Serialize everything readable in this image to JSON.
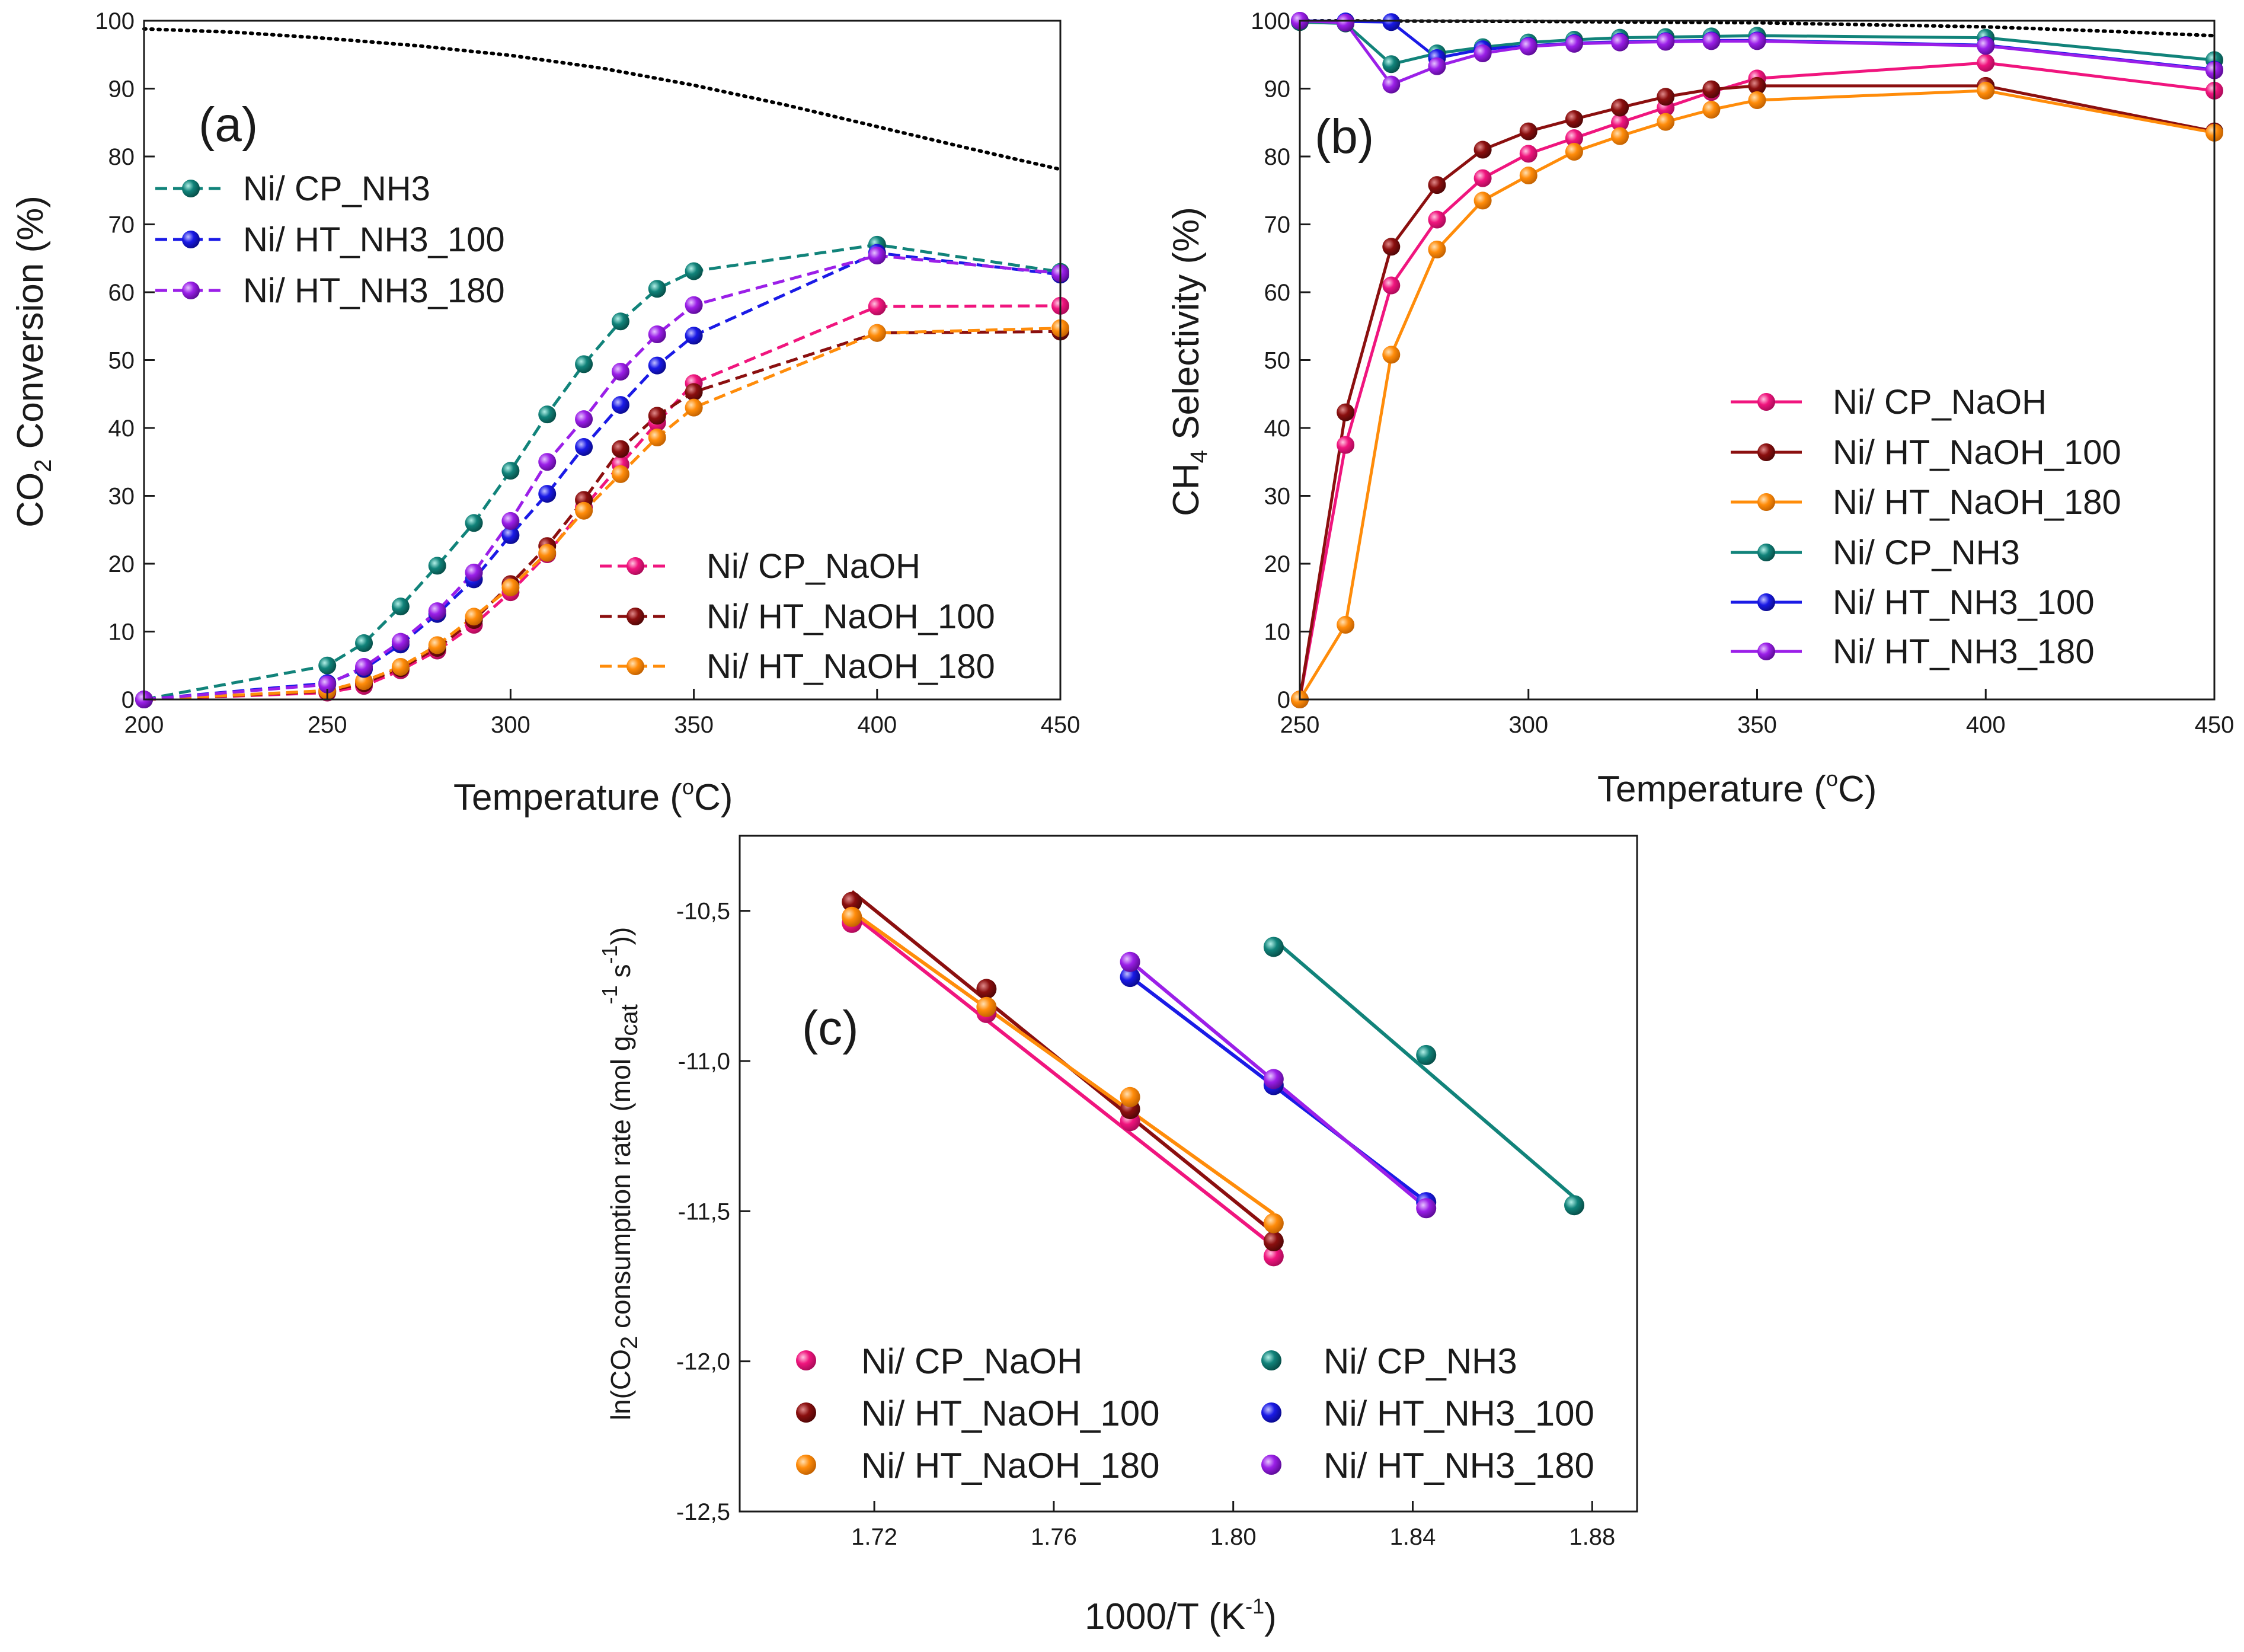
{
  "series_colors": {
    "cp_naoh": "#f0157e",
    "ht_naoh_100": "#8b0f0f",
    "ht_naoh_180": "#ff8c0a",
    "cp_nh3": "#11837a",
    "ht_nh3_100": "#1a1ae6",
    "ht_nh3_180": "#9b1fe8",
    "equilibrium": "#000000"
  },
  "chart_data": [
    {
      "panel": "(a)",
      "type": "line",
      "title": "",
      "xlabel": "Temperature (",
      "xlabel_degree": "o",
      "xlabel_unit": "C)",
      "ylabel_prefix": "CO",
      "ylabel_sub": "2",
      "ylabel_suffix": " Conversion (%)",
      "xlim": [
        200,
        450
      ],
      "ylim": [
        0,
        100
      ],
      "xticks": [
        200,
        250,
        300,
        350,
        400,
        450
      ],
      "yticks": [
        0,
        10,
        20,
        30,
        40,
        50,
        60,
        70,
        80,
        90,
        100
      ],
      "x": [
        200,
        250,
        260,
        270,
        280,
        290,
        300,
        310,
        320,
        330,
        340,
        350,
        400,
        450
      ],
      "series": [
        {
          "key": "cp_naoh",
          "name": "Ni/ CP_NaOH",
          "values": [
            0,
            1,
            2,
            4.3,
            7.2,
            11,
            15.8,
            21.4,
            28.3,
            34.6,
            40.8,
            46.6,
            57.9,
            58
          ]
        },
        {
          "key": "ht_naoh_100",
          "name": "Ni/ HT_NaOH_100",
          "values": [
            0,
            1.2,
            2.4,
            4.6,
            7.6,
            11.7,
            17,
            22.6,
            29.4,
            36.9,
            41.8,
            45.3,
            54,
            54.2
          ]
        },
        {
          "key": "ht_naoh_180",
          "name": "Ni/ HT_NaOH_180",
          "values": [
            0,
            1.3,
            2.7,
            4.8,
            8,
            12.2,
            16.5,
            21.6,
            27.8,
            33.2,
            38.6,
            43,
            54,
            54.7
          ]
        },
        {
          "key": "cp_nh3",
          "name": "Ni/ CP_NH3",
          "values": [
            0,
            5,
            8.3,
            13.7,
            19.7,
            26,
            33.7,
            42,
            49.4,
            55.7,
            60.5,
            63.1,
            67,
            63
          ]
        },
        {
          "key": "ht_nh3_100",
          "name": "Ni/ HT_NH3_100",
          "values": [
            0,
            2.4,
            4.5,
            8.1,
            12.6,
            17.7,
            24.2,
            30.3,
            37.2,
            43.4,
            49.2,
            53.6,
            65.8,
            62.6
          ]
        },
        {
          "key": "ht_nh3_180",
          "name": "Ni/ HT_NH3_180",
          "values": [
            0,
            2.2,
            4.8,
            8.5,
            13,
            18.7,
            26.3,
            35,
            41.3,
            48.3,
            53.8,
            58.1,
            65.4,
            62.8
          ]
        }
      ],
      "equilibrium": {
        "x": [
          200,
          225,
          250,
          275,
          300,
          325,
          350,
          375,
          400,
          425,
          450
        ],
        "values": [
          98.8,
          98.3,
          97.4,
          96.3,
          94.9,
          93,
          90.5,
          87.6,
          84.4,
          81.2,
          78.1
        ]
      },
      "legend_groups": [
        [
          "cp_nh3",
          "ht_nh3_100",
          "ht_nh3_180"
        ],
        [
          "cp_naoh",
          "ht_naoh_100",
          "ht_naoh_180"
        ]
      ],
      "legend": "top-left and bottom-right"
    },
    {
      "panel": "(b)",
      "type": "line",
      "title": "",
      "xlabel": "Temperature (",
      "xlabel_degree": "o",
      "xlabel_unit": "C)",
      "ylabel_prefix": "CH",
      "ylabel_sub": "4",
      "ylabel_suffix": " Selectivity (%)",
      "xlim": [
        250,
        450
      ],
      "ylim": [
        0,
        100
      ],
      "xticks": [
        250,
        300,
        350,
        400,
        450
      ],
      "yticks": [
        0,
        10,
        20,
        30,
        40,
        50,
        60,
        70,
        80,
        90,
        100
      ],
      "x": [
        250,
        260,
        270,
        280,
        290,
        300,
        310,
        320,
        330,
        340,
        350,
        400,
        450
      ],
      "series": [
        {
          "key": "cp_naoh",
          "name": "Ni/ CP_NaOH",
          "values": [
            0,
            37.5,
            61,
            70.7,
            76.8,
            80.4,
            82.7,
            85,
            87.2,
            89.5,
            91.5,
            93.8,
            89.7
          ]
        },
        {
          "key": "ht_naoh_100",
          "name": "Ni/ HT_NaOH_100",
          "values": [
            0,
            42.3,
            66.7,
            75.8,
            81,
            83.7,
            85.5,
            87.2,
            88.8,
            89.9,
            90.4,
            90.4,
            83.7
          ]
        },
        {
          "key": "ht_naoh_180",
          "name": "Ni/ HT_NaOH_180",
          "values": [
            0,
            11,
            50.8,
            66.3,
            73.5,
            77.2,
            80.7,
            83,
            85.1,
            86.9,
            88.3,
            89.7,
            83.5
          ]
        },
        {
          "key": "cp_nh3",
          "name": "Ni/ CP_NH3",
          "values": [
            99.8,
            99.6,
            93.6,
            95.2,
            96.1,
            96.8,
            97.2,
            97.5,
            97.6,
            97.7,
            97.8,
            97.5,
            94.2
          ]
        },
        {
          "key": "ht_nh3_100",
          "name": "Ni/ HT_NH3_100",
          "values": [
            100,
            99.9,
            99.8,
            94.5,
            95.8,
            96.3,
            96.7,
            96.9,
            97,
            97.1,
            97.1,
            96.4,
            92.8
          ]
        },
        {
          "key": "ht_nh3_180",
          "name": "Ni/ HT_NH3_180",
          "values": [
            100,
            99.7,
            90.6,
            93.3,
            95.2,
            96.2,
            96.6,
            96.8,
            96.9,
            97,
            97,
            96.3,
            92.7
          ]
        }
      ],
      "equilibrium": {
        "x": [
          250,
          300,
          350,
          400,
          425,
          450
        ],
        "values": [
          100,
          99.9,
          99.7,
          99.1,
          98.5,
          97.8
        ]
      },
      "legend_order": [
        "cp_naoh",
        "ht_naoh_100",
        "ht_naoh_180",
        "cp_nh3",
        "ht_nh3_100",
        "ht_nh3_180"
      ],
      "legend": "center-right"
    },
    {
      "panel": "(c)",
      "type": "scatter",
      "title": "",
      "xlabel": "1000/T (K",
      "xlabel_sup": "-1",
      "xlabel_end": ")",
      "ylabel_a": "ln(CO",
      "ylabel_sub1": "2",
      "ylabel_b": " consumption rate (mol g",
      "ylabel_sub2": "cat",
      "ylabel_sup1": "-1",
      "ylabel_c": " s",
      "ylabel_sup2": "-1",
      "ylabel_d": "))",
      "xlim": [
        1.69,
        1.89
      ],
      "ylim": [
        -12.5,
        -10.25
      ],
      "xticks": [
        1.72,
        1.76,
        1.8,
        1.84,
        1.88
      ],
      "xtick_labels": [
        "1.72",
        "1.76",
        "1.80",
        "1.84",
        "1.88"
      ],
      "yticks": [
        -10.5,
        -11.0,
        -11.5,
        -12.0,
        -12.5
      ],
      "ytick_labels": [
        "-10,5",
        "-11,0",
        "-11,5",
        "-12,0",
        "-12,5"
      ],
      "series": [
        {
          "key": "cp_naoh",
          "name": "Ni/ CP_NaOH",
          "x": [
            1.715,
            1.745,
            1.777,
            1.809
          ],
          "values": [
            -10.54,
            -10.84,
            -11.2,
            -11.65
          ]
        },
        {
          "key": "ht_naoh_100",
          "name": "Ni/ HT_NaOH_100",
          "x": [
            1.715,
            1.745,
            1.777,
            1.809
          ],
          "values": [
            -10.47,
            -10.76,
            -11.16,
            -11.6
          ]
        },
        {
          "key": "ht_naoh_180",
          "name": "Ni/ HT_NaOH_180",
          "x": [
            1.715,
            1.745,
            1.777,
            1.809
          ],
          "values": [
            -10.52,
            -10.82,
            -11.12,
            -11.54
          ]
        },
        {
          "key": "cp_nh3",
          "name": "Ni/ CP_NH3",
          "x": [
            1.809,
            1.843,
            1.876
          ],
          "values": [
            -10.62,
            -10.98,
            -11.48
          ]
        },
        {
          "key": "ht_nh3_100",
          "name": "Ni/ HT_NH3_100",
          "x": [
            1.777,
            1.809,
            1.843
          ],
          "values": [
            -10.72,
            -11.08,
            -11.47
          ]
        },
        {
          "key": "ht_nh3_180",
          "name": "Ni/ HT_NH3_180",
          "x": [
            1.777,
            1.809,
            1.843
          ],
          "values": [
            -10.67,
            -11.06,
            -11.49
          ]
        }
      ],
      "legend_columns": [
        [
          "cp_naoh",
          "ht_naoh_100",
          "ht_naoh_180"
        ],
        [
          "cp_nh3",
          "ht_nh3_100",
          "ht_nh3_180"
        ]
      ],
      "legend": "bottom"
    }
  ]
}
